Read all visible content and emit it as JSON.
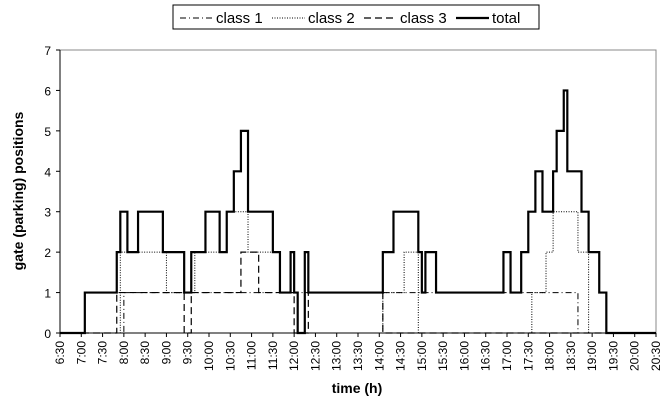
{
  "chart_data": {
    "type": "line",
    "xlabel": "time (h)",
    "ylabel": "gate (parking) positions",
    "ylim": [
      0,
      7
    ],
    "y_ticks": [
      "0",
      "1",
      "2",
      "3",
      "4",
      "5",
      "6",
      "7"
    ],
    "x_ticks": [
      "6:30",
      "7:00",
      "7:30",
      "8:00",
      "8:30",
      "9:00",
      "9:30",
      "10:00",
      "10:30",
      "11:00",
      "11:30",
      "12:00",
      "12:30",
      "13:00",
      "13:30",
      "14:00",
      "14:30",
      "15:00",
      "15:30",
      "16:00",
      "16:30",
      "17:00",
      "17:30",
      "18:00",
      "18:30",
      "19:00",
      "19:30",
      "20:00",
      "20:30"
    ],
    "legend": {
      "position": "top",
      "entries": [
        "class 1",
        "class 2",
        "class 3",
        "total"
      ]
    },
    "series": [
      {
        "name": "class 1",
        "style": "dash-dot",
        "points": [
          [
            "6:30",
            0
          ],
          [
            "8:00",
            0
          ],
          [
            "8:00",
            1
          ],
          [
            "18:40",
            1
          ],
          [
            "18:40",
            0
          ],
          [
            "20:30",
            0
          ]
        ]
      },
      {
        "name": "class 2",
        "style": "dotted",
        "points": [
          [
            "6:30",
            0
          ],
          [
            "7:55",
            0
          ],
          [
            "7:55",
            2
          ],
          [
            "9:00",
            2
          ],
          [
            "9:00",
            1
          ],
          [
            "9:40",
            1
          ],
          [
            "9:40",
            2
          ],
          [
            "10:25",
            2
          ],
          [
            "10:25",
            3
          ],
          [
            "10:55",
            3
          ],
          [
            "10:55",
            2
          ],
          [
            "11:40",
            2
          ],
          [
            "11:40",
            1
          ],
          [
            "12:05",
            1
          ],
          [
            "12:05",
            0
          ],
          [
            "14:05",
            0
          ],
          [
            "14:05",
            1
          ],
          [
            "14:35",
            1
          ],
          [
            "14:35",
            2
          ],
          [
            "14:55",
            2
          ],
          [
            "14:55",
            0
          ],
          [
            "17:35",
            0
          ],
          [
            "17:35",
            1
          ],
          [
            "17:55",
            1
          ],
          [
            "17:55",
            2
          ],
          [
            "18:05",
            2
          ],
          [
            "18:05",
            3
          ],
          [
            "18:40",
            3
          ],
          [
            "18:40",
            2
          ],
          [
            "18:55",
            2
          ],
          [
            "18:55",
            0
          ],
          [
            "20:30",
            0
          ]
        ]
      },
      {
        "name": "class 3",
        "style": "dashed",
        "points": [
          [
            "6:30",
            0
          ],
          [
            "7:50",
            0
          ],
          [
            "7:50",
            1
          ],
          [
            "9:25",
            1
          ],
          [
            "9:25",
            0
          ],
          [
            "9:35",
            0
          ],
          [
            "9:35",
            1
          ],
          [
            "10:45",
            1
          ],
          [
            "10:45",
            2
          ],
          [
            "11:10",
            2
          ],
          [
            "11:10",
            1
          ],
          [
            "12:00",
            1
          ],
          [
            "12:00",
            0
          ],
          [
            "12:20",
            0
          ],
          [
            "12:20",
            1
          ],
          [
            "14:05",
            1
          ],
          [
            "14:05",
            0
          ],
          [
            "20:30",
            0
          ]
        ]
      },
      {
        "name": "total",
        "style": "solid",
        "points": [
          [
            "6:30",
            0
          ],
          [
            "7:05",
            0
          ],
          [
            "7:05",
            1
          ],
          [
            "7:50",
            1
          ],
          [
            "7:50",
            2
          ],
          [
            "7:55",
            2
          ],
          [
            "7:55",
            3
          ],
          [
            "8:05",
            3
          ],
          [
            "8:05",
            2
          ],
          [
            "8:20",
            2
          ],
          [
            "8:20",
            3
          ],
          [
            "8:55",
            3
          ],
          [
            "8:55",
            2
          ],
          [
            "9:25",
            2
          ],
          [
            "9:25",
            1
          ],
          [
            "9:35",
            1
          ],
          [
            "9:35",
            2
          ],
          [
            "9:55",
            2
          ],
          [
            "9:55",
            3
          ],
          [
            "10:15",
            3
          ],
          [
            "10:15",
            2
          ],
          [
            "10:25",
            2
          ],
          [
            "10:25",
            3
          ],
          [
            "10:35",
            3
          ],
          [
            "10:35",
            4
          ],
          [
            "10:45",
            4
          ],
          [
            "10:45",
            5
          ],
          [
            "10:55",
            5
          ],
          [
            "10:55",
            3
          ],
          [
            "11:30",
            3
          ],
          [
            "11:30",
            2
          ],
          [
            "11:40",
            2
          ],
          [
            "11:40",
            1
          ],
          [
            "11:55",
            1
          ],
          [
            "11:55",
            2
          ],
          [
            "12:00",
            2
          ],
          [
            "12:00",
            1
          ],
          [
            "12:05",
            1
          ],
          [
            "12:05",
            0
          ],
          [
            "12:15",
            0
          ],
          [
            "12:15",
            2
          ],
          [
            "12:20",
            2
          ],
          [
            "12:20",
            1
          ],
          [
            "14:05",
            1
          ],
          [
            "14:05",
            2
          ],
          [
            "14:20",
            2
          ],
          [
            "14:20",
            3
          ],
          [
            "14:55",
            3
          ],
          [
            "14:55",
            2
          ],
          [
            "15:00",
            2
          ],
          [
            "15:00",
            1
          ],
          [
            "15:05",
            1
          ],
          [
            "15:05",
            2
          ],
          [
            "15:20",
            2
          ],
          [
            "15:20",
            1
          ],
          [
            "16:55",
            1
          ],
          [
            "16:55",
            2
          ],
          [
            "17:05",
            2
          ],
          [
            "17:05",
            1
          ],
          [
            "17:20",
            1
          ],
          [
            "17:20",
            2
          ],
          [
            "17:30",
            2
          ],
          [
            "17:30",
            3
          ],
          [
            "17:40",
            3
          ],
          [
            "17:40",
            4
          ],
          [
            "17:50",
            4
          ],
          [
            "17:50",
            3
          ],
          [
            "18:05",
            3
          ],
          [
            "18:05",
            4
          ],
          [
            "18:10",
            4
          ],
          [
            "18:10",
            5
          ],
          [
            "18:20",
            5
          ],
          [
            "18:20",
            6
          ],
          [
            "18:25",
            6
          ],
          [
            "18:25",
            4
          ],
          [
            "18:45",
            4
          ],
          [
            "18:45",
            3
          ],
          [
            "18:55",
            3
          ],
          [
            "18:55",
            2
          ],
          [
            "19:10",
            2
          ],
          [
            "19:10",
            1
          ],
          [
            "19:20",
            1
          ],
          [
            "19:20",
            0
          ],
          [
            "20:30",
            0
          ]
        ]
      }
    ]
  }
}
